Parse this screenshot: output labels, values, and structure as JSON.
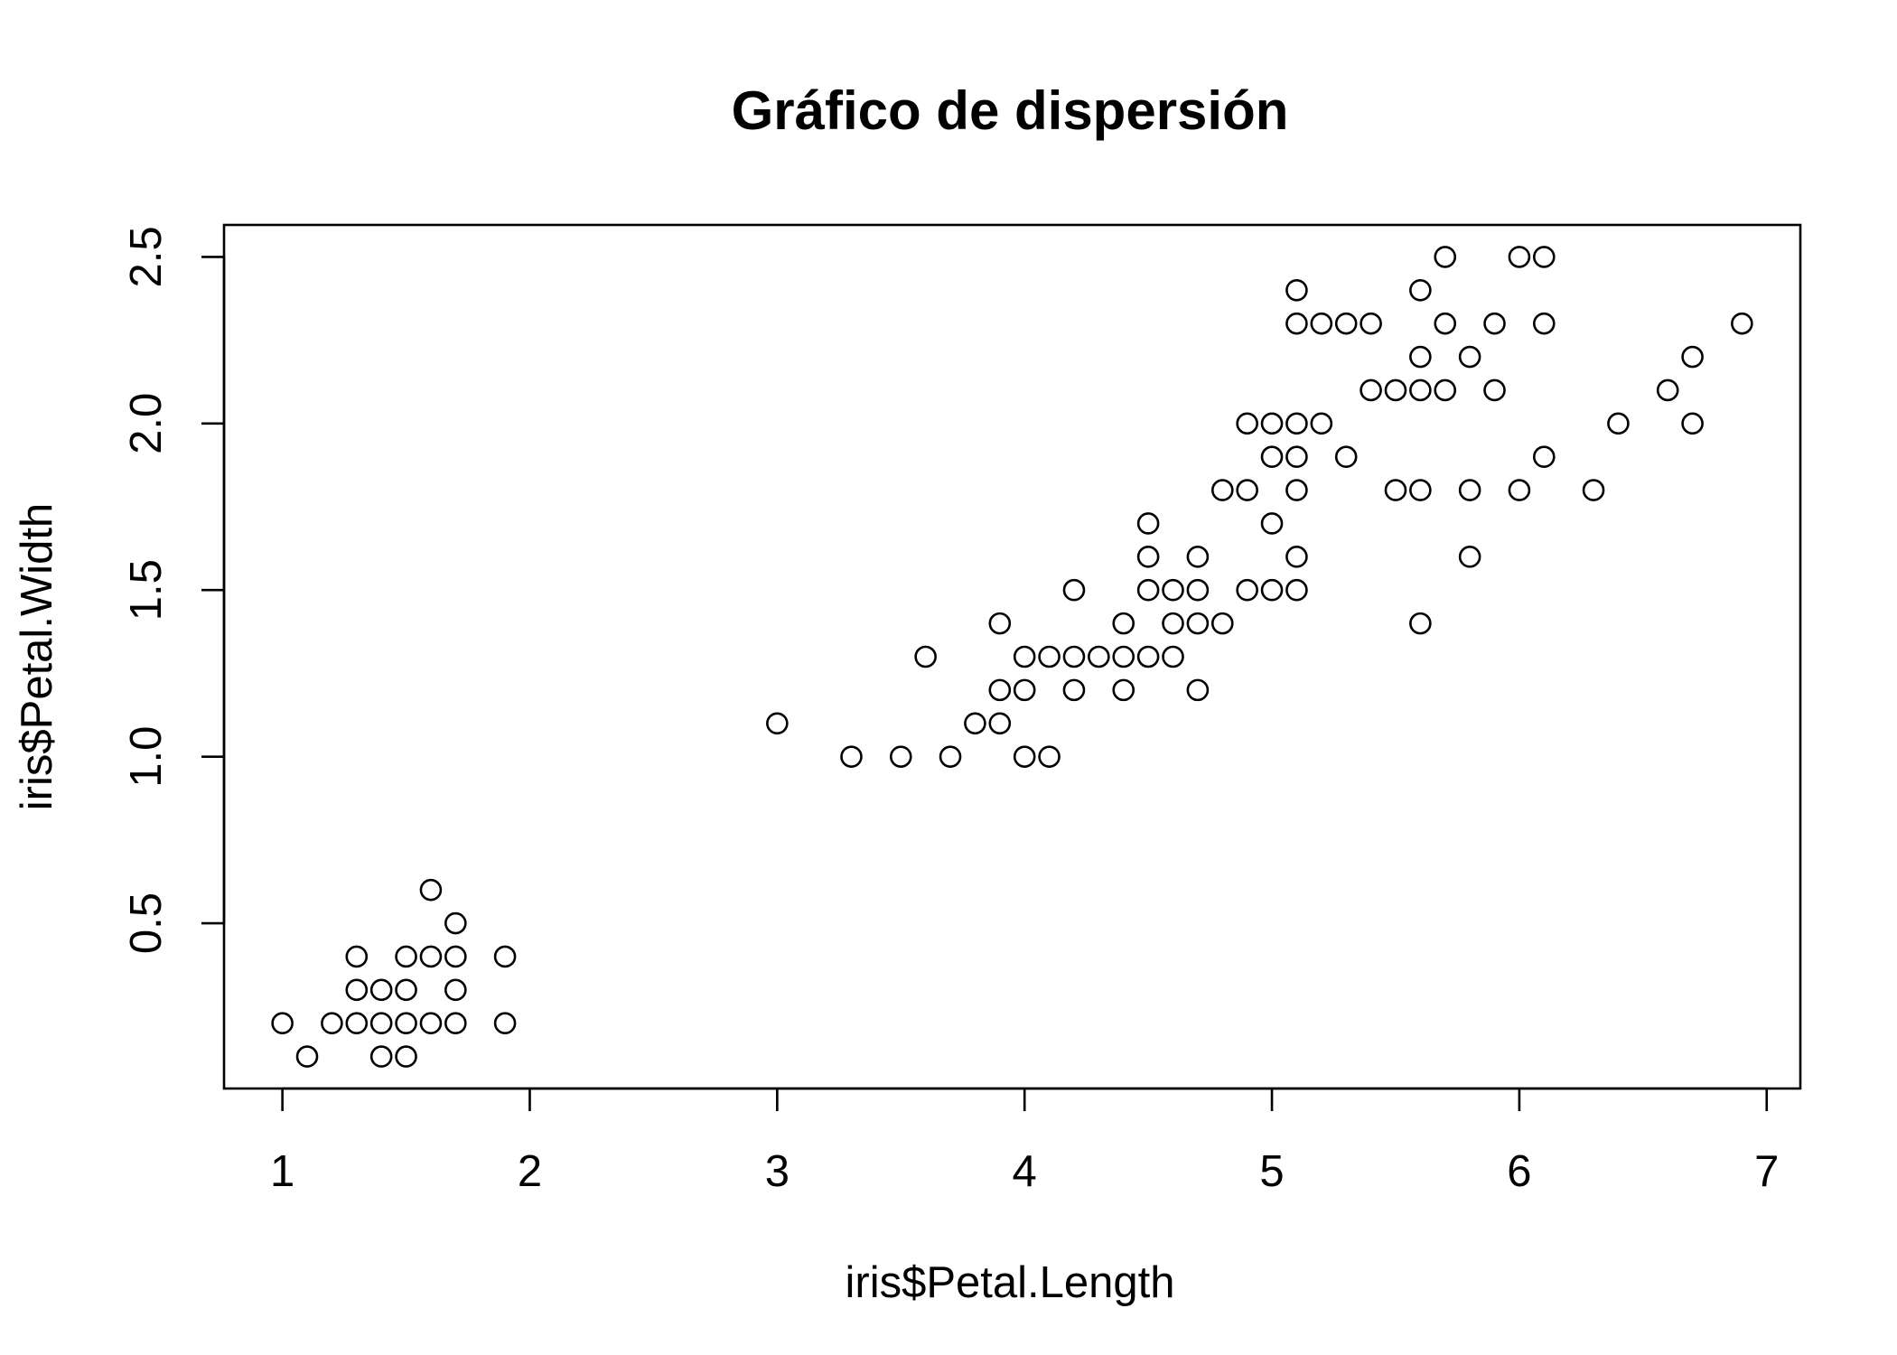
{
  "chart_data": {
    "type": "scatter",
    "title": "Gráfico de dispersión",
    "xlabel": "iris$Petal.Length",
    "ylabel": "iris$Petal.Width",
    "xlim": [
      0.764,
      7.136
    ],
    "ylim": [
      0.004,
      2.596
    ],
    "x_ticks": [
      1,
      2,
      3,
      4,
      5,
      6,
      7
    ],
    "x_tick_labels": [
      "1",
      "2",
      "3",
      "4",
      "5",
      "6",
      "7"
    ],
    "y_ticks": [
      0.5,
      1.0,
      1.5,
      2.0,
      2.5
    ],
    "y_tick_labels": [
      "0.5",
      "1.0",
      "1.5",
      "2.0",
      "2.5"
    ],
    "grid": false,
    "marker": "open-circle",
    "colors": {
      "points": "#000000",
      "frame": "#000000",
      "background": "#ffffff"
    },
    "points": [
      [
        1.0,
        0.2
      ],
      [
        1.1,
        0.1
      ],
      [
        1.2,
        0.2
      ],
      [
        1.3,
        0.2
      ],
      [
        1.3,
        0.3
      ],
      [
        1.3,
        0.4
      ],
      [
        1.4,
        0.1
      ],
      [
        1.4,
        0.2
      ],
      [
        1.4,
        0.3
      ],
      [
        1.5,
        0.1
      ],
      [
        1.5,
        0.2
      ],
      [
        1.5,
        0.3
      ],
      [
        1.5,
        0.4
      ],
      [
        1.6,
        0.2
      ],
      [
        1.6,
        0.4
      ],
      [
        1.6,
        0.6
      ],
      [
        1.7,
        0.2
      ],
      [
        1.7,
        0.3
      ],
      [
        1.7,
        0.4
      ],
      [
        1.7,
        0.5
      ],
      [
        1.9,
        0.2
      ],
      [
        1.9,
        0.4
      ],
      [
        3.0,
        1.1
      ],
      [
        3.3,
        1.0
      ],
      [
        3.5,
        1.0
      ],
      [
        3.6,
        1.3
      ],
      [
        3.7,
        1.0
      ],
      [
        3.8,
        1.1
      ],
      [
        3.9,
        1.1
      ],
      [
        3.9,
        1.2
      ],
      [
        3.9,
        1.4
      ],
      [
        4.0,
        1.0
      ],
      [
        4.0,
        1.2
      ],
      [
        4.0,
        1.3
      ],
      [
        4.1,
        1.0
      ],
      [
        4.1,
        1.3
      ],
      [
        4.2,
        1.2
      ],
      [
        4.2,
        1.3
      ],
      [
        4.2,
        1.5
      ],
      [
        4.3,
        1.3
      ],
      [
        4.4,
        1.2
      ],
      [
        4.4,
        1.3
      ],
      [
        4.4,
        1.4
      ],
      [
        4.5,
        1.3
      ],
      [
        4.5,
        1.5
      ],
      [
        4.5,
        1.6
      ],
      [
        4.5,
        1.7
      ],
      [
        4.6,
        1.3
      ],
      [
        4.6,
        1.4
      ],
      [
        4.6,
        1.5
      ],
      [
        4.7,
        1.2
      ],
      [
        4.7,
        1.4
      ],
      [
        4.7,
        1.5
      ],
      [
        4.7,
        1.6
      ],
      [
        4.8,
        1.4
      ],
      [
        4.8,
        1.8
      ],
      [
        4.9,
        1.5
      ],
      [
        4.9,
        1.8
      ],
      [
        4.9,
        2.0
      ],
      [
        5.0,
        1.5
      ],
      [
        5.0,
        1.7
      ],
      [
        5.0,
        1.9
      ],
      [
        5.0,
        2.0
      ],
      [
        5.1,
        1.5
      ],
      [
        5.1,
        1.6
      ],
      [
        5.1,
        1.8
      ],
      [
        5.1,
        1.9
      ],
      [
        5.1,
        2.0
      ],
      [
        5.1,
        2.3
      ],
      [
        5.1,
        2.4
      ],
      [
        5.2,
        2.0
      ],
      [
        5.2,
        2.3
      ],
      [
        5.3,
        1.9
      ],
      [
        5.3,
        2.3
      ],
      [
        5.4,
        2.1
      ],
      [
        5.4,
        2.3
      ],
      [
        5.5,
        1.8
      ],
      [
        5.5,
        2.1
      ],
      [
        5.6,
        1.4
      ],
      [
        5.6,
        1.8
      ],
      [
        5.6,
        2.1
      ],
      [
        5.6,
        2.2
      ],
      [
        5.6,
        2.4
      ],
      [
        5.7,
        2.1
      ],
      [
        5.7,
        2.3
      ],
      [
        5.7,
        2.5
      ],
      [
        5.8,
        1.6
      ],
      [
        5.8,
        1.8
      ],
      [
        5.8,
        2.2
      ],
      [
        5.9,
        2.1
      ],
      [
        5.9,
        2.3
      ],
      [
        6.0,
        1.8
      ],
      [
        6.0,
        2.5
      ],
      [
        6.1,
        1.9
      ],
      [
        6.1,
        2.3
      ],
      [
        6.1,
        2.5
      ],
      [
        6.3,
        1.8
      ],
      [
        6.4,
        2.0
      ],
      [
        6.6,
        2.1
      ],
      [
        6.7,
        2.0
      ],
      [
        6.7,
        2.2
      ],
      [
        6.9,
        2.3
      ]
    ]
  }
}
